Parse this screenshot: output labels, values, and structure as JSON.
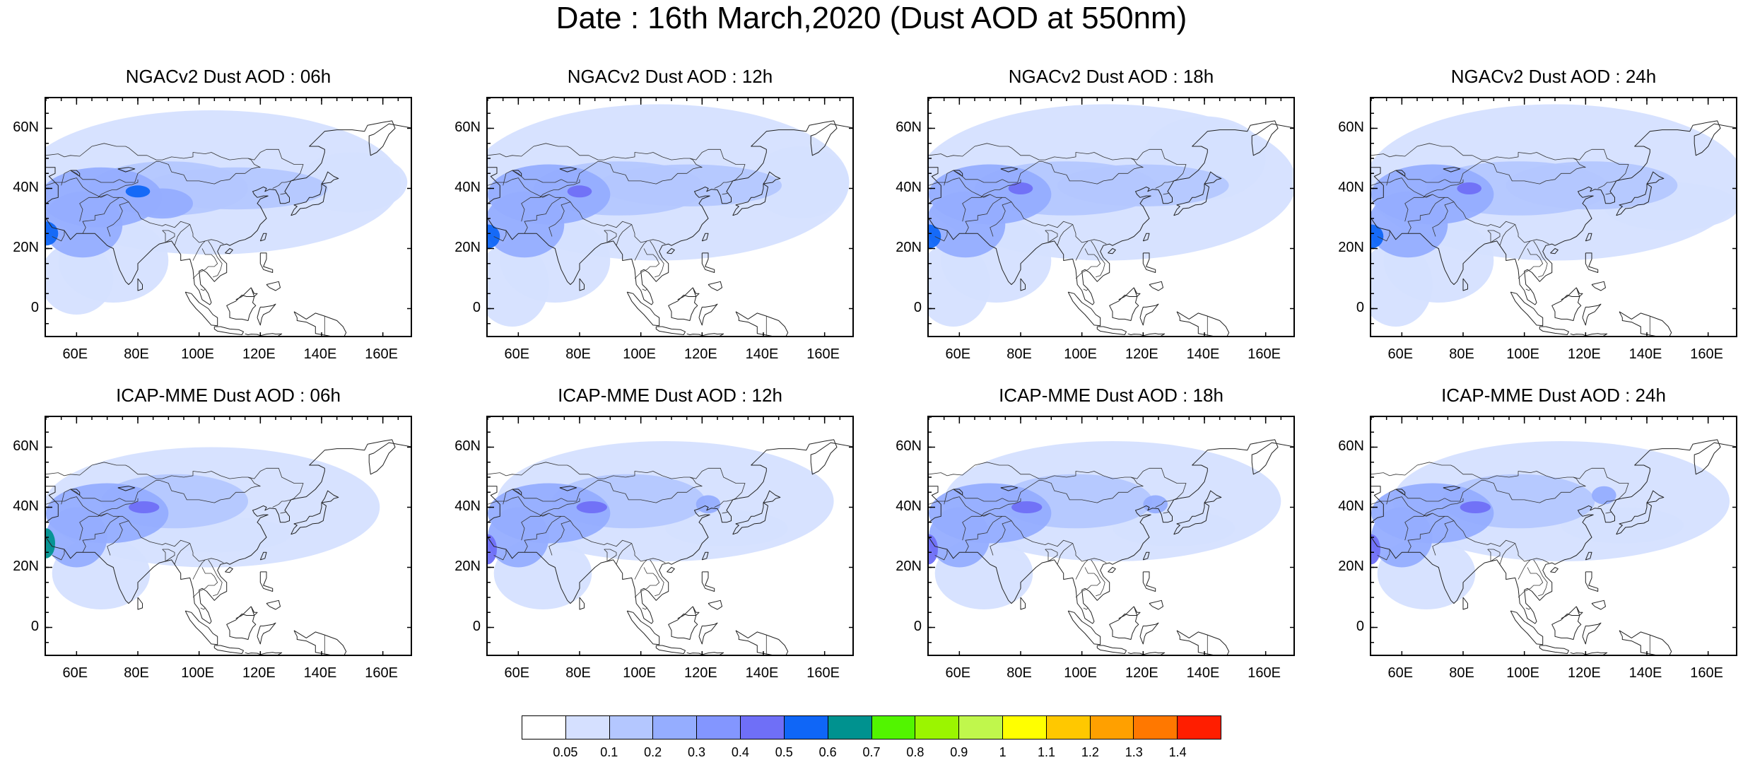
{
  "title": "Date : 16th March,2020 (Dust AOD at 550nm)",
  "panels": [
    {
      "title": "NGACv2 Dust AOD : 06h"
    },
    {
      "title": "NGACv2 Dust AOD : 12h"
    },
    {
      "title": "NGACv2 Dust AOD : 18h"
    },
    {
      "title": "NGACv2 Dust AOD : 24h"
    },
    {
      "title": "ICAP-MME Dust AOD : 06h"
    },
    {
      "title": "ICAP-MME Dust AOD : 12h"
    },
    {
      "title": "ICAP-MME Dust AOD : 18h"
    },
    {
      "title": "ICAP-MME Dust AOD : 24h"
    }
  ],
  "axes": {
    "lon_range": [
      50,
      170
    ],
    "lat_range": [
      -10,
      70
    ],
    "lon_ticks": [
      "60E",
      "80E",
      "100E",
      "120E",
      "140E",
      "160E"
    ],
    "lat_ticks": [
      "60N",
      "40N",
      "20N",
      "0"
    ]
  },
  "colorbar": {
    "labels": [
      "0.05",
      "0.1",
      "0.2",
      "0.3",
      "0.4",
      "0.5",
      "0.6",
      "0.7",
      "0.8",
      "0.9",
      "1",
      "1.1",
      "1.2",
      "1.3",
      "1.4"
    ],
    "colors": [
      "#ffffff",
      "#d5e0ff",
      "#b4c7ff",
      "#95adff",
      "#8396ff",
      "#6f6ff7",
      "#0f66f7",
      "#00928f",
      "#52f500",
      "#9bf500",
      "#c0f74c",
      "#ffff00",
      "#ffc800",
      "#ffa000",
      "#ff7800",
      "#ff1e00"
    ]
  }
}
